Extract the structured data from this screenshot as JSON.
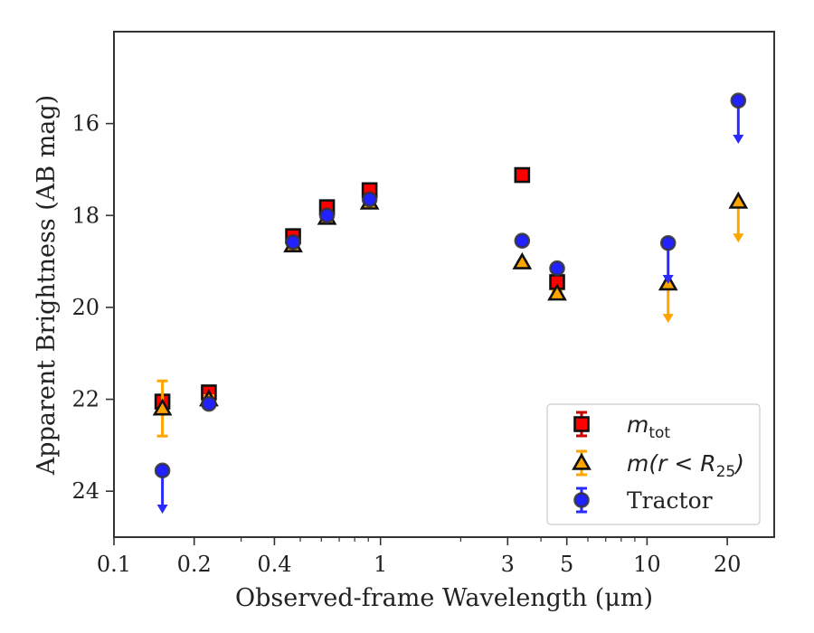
{
  "chart_data": {
    "type": "scatter",
    "xlabel": "Observed-frame Wavelength (μm)",
    "ylabel": "Apparent Brightness (AB mag)",
    "xscale": "log",
    "xlim": [
      0.1,
      30
    ],
    "ylim": [
      25,
      14
    ],
    "y_inverted": true,
    "grid": false,
    "legend_position": "lower-right",
    "x_ticks": [
      {
        "value": 0.1,
        "label": "0.1"
      },
      {
        "value": 0.2,
        "label": "0.2"
      },
      {
        "value": 0.4,
        "label": "0.4"
      },
      {
        "value": 1,
        "label": "1"
      },
      {
        "value": 3,
        "label": "3"
      },
      {
        "value": 5,
        "label": "5"
      },
      {
        "value": 10,
        "label": "10"
      },
      {
        "value": 20,
        "label": "20"
      }
    ],
    "y_ticks": [
      {
        "value": 16,
        "label": "16"
      },
      {
        "value": 18,
        "label": "18"
      },
      {
        "value": 20,
        "label": "20"
      },
      {
        "value": 22,
        "label": "22"
      },
      {
        "value": 24,
        "label": "24"
      }
    ],
    "series": [
      {
        "name_main": "m",
        "name_sub": "tot",
        "marker": "square",
        "face_color": "#ff0000",
        "edge_color": "#111111",
        "error_color": "#cc0000",
        "points": [
          {
            "x": 0.152,
            "y": 22.05,
            "err": 0.12
          },
          {
            "x": 0.227,
            "y": 21.85,
            "err": 0.08
          },
          {
            "x": 0.47,
            "y": 18.45,
            "err": 0.05
          },
          {
            "x": 0.63,
            "y": 17.82,
            "err": 0.05
          },
          {
            "x": 0.91,
            "y": 17.45,
            "err": 0.05
          },
          {
            "x": 3.4,
            "y": 17.12,
            "err": 0.02
          },
          {
            "x": 4.6,
            "y": 19.45,
            "err": 0.05
          }
        ]
      },
      {
        "name_main": "m(r < R",
        "name_sub": "25",
        "name_tail": ")",
        "marker": "triangle",
        "face_color": "#ffa500",
        "edge_color": "#111111",
        "error_color": "#ffa500",
        "points": [
          {
            "x": 0.152,
            "y": 22.2,
            "err": 0.6
          },
          {
            "x": 0.227,
            "y": 22.0,
            "err": 0.08
          },
          {
            "x": 0.47,
            "y": 18.65,
            "err": 0.05
          },
          {
            "x": 0.63,
            "y": 18.05,
            "err": 0.05
          },
          {
            "x": 0.91,
            "y": 17.72,
            "err": 0.05
          },
          {
            "x": 3.4,
            "y": 19.02,
            "err": 0.02
          },
          {
            "x": 4.6,
            "y": 19.7,
            "err": 0.05
          },
          {
            "x": 12.0,
            "y": 19.48,
            "upper_limit": true,
            "arrow_to": 20.3
          },
          {
            "x": 22.0,
            "y": 17.7,
            "upper_limit": true,
            "arrow_to": 18.55
          }
        ]
      },
      {
        "name_main": "Tractor",
        "marker": "circle",
        "face_color": "#2222ff",
        "edge_color": "#333333",
        "error_color": "#2a2aff",
        "points": [
          {
            "x": 0.152,
            "y": 23.55,
            "upper_limit": true,
            "arrow_to": 24.45
          },
          {
            "x": 0.227,
            "y": 22.1,
            "err": 0.08
          },
          {
            "x": 0.47,
            "y": 18.58,
            "err": 0.05
          },
          {
            "x": 0.63,
            "y": 18.0,
            "err": 0.05
          },
          {
            "x": 0.91,
            "y": 17.65,
            "err": 0.05
          },
          {
            "x": 3.4,
            "y": 18.55,
            "err": 0.05
          },
          {
            "x": 4.6,
            "y": 19.15,
            "err": 0.05
          },
          {
            "x": 12.0,
            "y": 18.6,
            "upper_limit": true,
            "arrow_to": 19.45
          },
          {
            "x": 22.0,
            "y": 15.5,
            "upper_limit": true,
            "arrow_to": 16.4
          }
        ]
      }
    ]
  }
}
